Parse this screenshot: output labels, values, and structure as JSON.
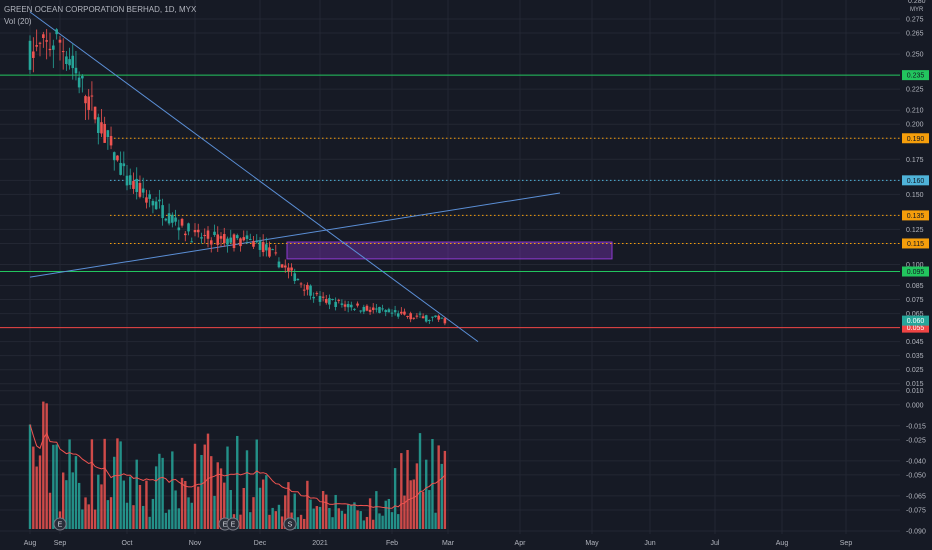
{
  "header": {
    "title": "GREEN OCEAN CORPORATION BERHAD, 1D, MYX",
    "volume_label": "Vol (20)",
    "currency_label": "MYR",
    "partial_top_label": "0.280"
  },
  "colors": {
    "background": "#161a25",
    "up": "#26a69a",
    "down": "#ef5350",
    "grid": "#232733",
    "axis_text": "#b2b5be",
    "green_level": "#22c55e",
    "orange_level": "#f59e0b",
    "cyan_level": "#4fb3d9",
    "red_level": "#ef4444",
    "trendline": "#5b8fd6",
    "zone": "#8e3ad1",
    "vol_ma": "#ef5350"
  },
  "chart_data": {
    "type": "candlestick",
    "title": "GREEN OCEAN CORPORATION BERHAD, 1D, MYX",
    "y_axis": {
      "unit": "MYR",
      "range": [
        -0.09,
        0.285
      ],
      "ticks": [
        "0.275",
        "0.265",
        "0.250",
        "0.235",
        "0.225",
        "0.210",
        "0.200",
        "0.190",
        "0.175",
        "0.160",
        "0.150",
        "0.135",
        "0.125",
        "0.115",
        "0.100",
        "0.095",
        "0.085",
        "0.075",
        "0.065",
        "0.055",
        "0.045",
        "0.035",
        "0.025",
        "0.015",
        "0.010",
        "0.000",
        "-0.015",
        "-0.025",
        "-0.040",
        "-0.050",
        "-0.065",
        "-0.075",
        "-0.090"
      ]
    },
    "x_axis": {
      "labels": [
        "Aug",
        "Sep",
        "Oct",
        "Nov",
        "Dec",
        "2021",
        "Feb",
        "Mar",
        "Apr",
        "May",
        "Jun",
        "Jul",
        "Aug",
        "Sep"
      ]
    },
    "horizontal_levels": [
      {
        "value": 0.235,
        "label": "0.235",
        "style": "solid",
        "color": "green"
      },
      {
        "value": 0.19,
        "label": "0.190",
        "style": "dotted",
        "color": "orange"
      },
      {
        "value": 0.16,
        "label": "0.160",
        "style": "dotted",
        "color": "cyan"
      },
      {
        "value": 0.135,
        "label": "0.135",
        "style": "dotted",
        "color": "orange"
      },
      {
        "value": 0.115,
        "label": "0.115",
        "style": "dotted",
        "color": "orange"
      },
      {
        "value": 0.095,
        "label": "0.095",
        "style": "solid",
        "color": "green"
      },
      {
        "value": 0.055,
        "label": "0.055",
        "style": "solid",
        "color": "red"
      }
    ],
    "current_price_label": "0.060",
    "zone": {
      "from": "Dec",
      "to": "May",
      "low": 0.104,
      "high": 0.116
    },
    "trendlines": [
      {
        "name": "downtrend",
        "from": {
          "x": "Aug",
          "y": 0.28
        },
        "to": {
          "x": "Mar",
          "y": 0.045
        }
      },
      {
        "name": "uptrend",
        "from": {
          "x": "Aug",
          "y": 0.091
        },
        "to": {
          "x": "Apr",
          "y": 0.151
        }
      }
    ],
    "price_segments": [
      {
        "from": "Aug",
        "to": "Sep",
        "start": 0.25,
        "end": 0.26,
        "vol": 0.7
      },
      {
        "from": "Sep",
        "to": "Oct",
        "start": 0.26,
        "end": 0.16,
        "vol": 0.5
      },
      {
        "from": "Oct",
        "to": "Nov",
        "start": 0.16,
        "end": 0.12,
        "vol": 0.4
      },
      {
        "from": "Nov",
        "to": "Dec",
        "start": 0.12,
        "end": 0.115,
        "vol": 0.5
      },
      {
        "from": "Dec",
        "to": "2021",
        "start": 0.115,
        "end": 0.075,
        "vol": 0.3
      },
      {
        "from": "2021",
        "to": "Feb",
        "start": 0.075,
        "end": 0.065,
        "vol": 0.2
      },
      {
        "from": "Feb",
        "to": "Mar",
        "start": 0.065,
        "end": 0.06,
        "vol": 0.5
      }
    ],
    "event_markers": [
      {
        "x": "Aug",
        "label": "E"
      },
      {
        "x": "Nov",
        "label": "E"
      },
      {
        "x": "Nov",
        "label": "E"
      },
      {
        "x": "Dec",
        "label": "S"
      }
    ]
  }
}
